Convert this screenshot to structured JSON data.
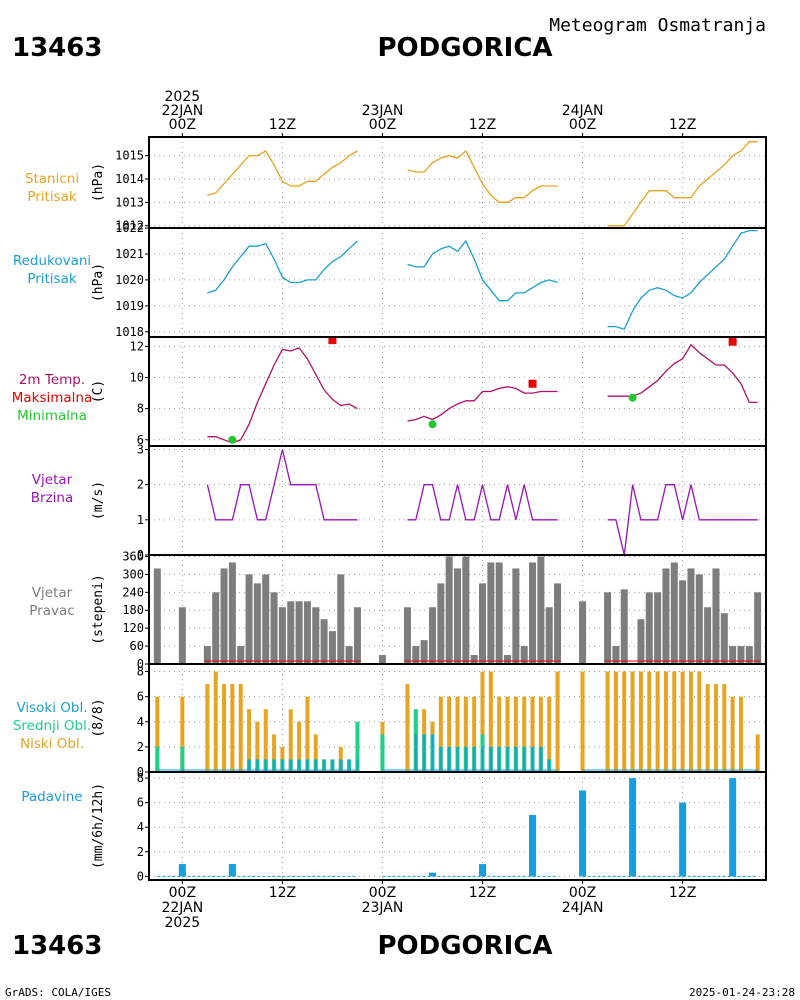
{
  "header": {
    "station_id": "13463",
    "station_name": "PODGORICA",
    "product": "Meteogram Osmatranja",
    "credit": "GrADS: COLA/IGES",
    "timestamp": "2025-01-24-23:28"
  },
  "colors": {
    "orange": "#e6a422",
    "cyan": "#1a9fd0",
    "magenta": "#b0106b",
    "red": "#e60000",
    "green": "#1fc82b",
    "purple": "#9a13b8",
    "gray": "#7d7d7d",
    "teal": "#1fcf8a",
    "blue": "#169fe0"
  },
  "time_axis": {
    "x_range_hours": [
      -4,
      70
    ],
    "top_labels": [
      {
        "hour": 0,
        "lines": [
          "2025",
          "22JAN",
          "00Z"
        ]
      },
      {
        "hour": 12,
        "lines": [
          "12Z"
        ]
      },
      {
        "hour": 24,
        "lines": [
          "23JAN",
          "00Z"
        ]
      },
      {
        "hour": 36,
        "lines": [
          "12Z"
        ]
      },
      {
        "hour": 48,
        "lines": [
          "24JAN",
          "00Z"
        ]
      },
      {
        "hour": 60,
        "lines": [
          "12Z"
        ]
      }
    ],
    "bottom_labels": [
      {
        "hour": 0,
        "lines": [
          "00Z",
          "22JAN",
          "2025"
        ]
      },
      {
        "hour": 12,
        "lines": [
          "12Z"
        ]
      },
      {
        "hour": 24,
        "lines": [
          "00Z",
          "23JAN"
        ]
      },
      {
        "hour": 36,
        "lines": [
          "12Z"
        ]
      },
      {
        "hour": 48,
        "lines": [
          "00Z",
          "24JAN"
        ]
      },
      {
        "hour": 60,
        "lines": [
          "12Z"
        ]
      }
    ]
  },
  "chart_data": [
    {
      "id": "station_pressure",
      "type": "line",
      "labels": [
        "Stanicni",
        "Pritisak"
      ],
      "ylabel": "(hPa)",
      "ylim": [
        1011.9,
        1015.8
      ],
      "ticks": [
        1012,
        1013,
        1014,
        1015
      ],
      "color": "orange",
      "segments": [
        {
          "x": [
            3,
            4,
            5,
            6,
            7,
            8,
            9,
            10,
            11,
            12,
            13,
            14,
            15,
            16,
            17,
            18,
            19,
            20,
            21
          ],
          "y": [
            1013.3,
            1013.4,
            1013.8,
            1014.2,
            1014.6,
            1015.0,
            1015.0,
            1015.2,
            1014.6,
            1013.9,
            1013.7,
            1013.7,
            1013.9,
            1013.9,
            1014.2,
            1014.5,
            1014.7,
            1015.0,
            1015.2
          ]
        },
        {
          "x": [
            27,
            28,
            29,
            30,
            31,
            32,
            33,
            34,
            35,
            36,
            37,
            38,
            39,
            40,
            41,
            42,
            43,
            44,
            45
          ],
          "y": [
            1014.4,
            1014.3,
            1014.3,
            1014.7,
            1014.9,
            1015.0,
            1014.9,
            1015.2,
            1014.5,
            1013.8,
            1013.3,
            1013.0,
            1013.0,
            1013.2,
            1013.2,
            1013.5,
            1013.7,
            1013.7,
            1013.7
          ]
        },
        {
          "x": [
            51,
            52,
            53,
            54,
            55,
            56,
            57,
            58,
            59,
            60,
            61,
            62,
            63,
            64,
            65,
            66,
            67,
            68,
            69
          ],
          "y": [
            1012.0,
            1012.0,
            1012.0,
            1012.5,
            1013.0,
            1013.5,
            1013.5,
            1013.5,
            1013.2,
            1013.2,
            1013.2,
            1013.7,
            1014.0,
            1014.3,
            1014.6,
            1015.0,
            1015.2,
            1015.6,
            1015.6
          ]
        }
      ]
    },
    {
      "id": "reduced_pressure",
      "type": "line",
      "labels": [
        "Redukovani",
        "Pritisak"
      ],
      "ylabel": "(hPa)",
      "ylim": [
        1017.8,
        1022.0
      ],
      "ticks": [
        1018,
        1019,
        1020,
        1021,
        1022
      ],
      "color": "cyan",
      "segments": [
        {
          "x": [
            3,
            4,
            5,
            6,
            7,
            8,
            9,
            10,
            11,
            12,
            13,
            14,
            15,
            16,
            17,
            18,
            19,
            20,
            21
          ],
          "y": [
            1019.5,
            1019.6,
            1020.0,
            1020.5,
            1020.9,
            1021.3,
            1021.3,
            1021.4,
            1020.8,
            1020.1,
            1019.9,
            1019.9,
            1020.0,
            1020.0,
            1020.4,
            1020.7,
            1020.9,
            1021.2,
            1021.5
          ]
        },
        {
          "x": [
            27,
            28,
            29,
            30,
            31,
            32,
            33,
            34,
            35,
            36,
            37,
            38,
            39,
            40,
            41,
            42,
            43,
            44,
            45
          ],
          "y": [
            1020.6,
            1020.5,
            1020.5,
            1021.0,
            1021.2,
            1021.3,
            1021.1,
            1021.5,
            1020.8,
            1020.0,
            1019.6,
            1019.2,
            1019.2,
            1019.5,
            1019.5,
            1019.7,
            1019.9,
            1020.0,
            1019.9
          ]
        },
        {
          "x": [
            51,
            52,
            53,
            54,
            55,
            56,
            57,
            58,
            59,
            60,
            61,
            62,
            63,
            64,
            65,
            66,
            67,
            68,
            69
          ],
          "y": [
            1018.2,
            1018.2,
            1018.1,
            1018.8,
            1019.3,
            1019.6,
            1019.7,
            1019.6,
            1019.4,
            1019.3,
            1019.5,
            1019.9,
            1020.2,
            1020.5,
            1020.8,
            1021.3,
            1021.8,
            1021.9,
            1021.9
          ]
        }
      ]
    },
    {
      "id": "temperature",
      "type": "line",
      "labels": [
        "2m Temp.",
        "Maksimalna",
        "Minimalna"
      ],
      "label_colors": [
        "magenta",
        "red",
        "green"
      ],
      "ylabel": "(C)",
      "ylim": [
        5.6,
        12.6
      ],
      "ticks": [
        6,
        8,
        10,
        12
      ],
      "color": "magenta",
      "segments": [
        {
          "x": [
            3,
            4,
            5,
            6,
            7,
            8,
            9,
            10,
            11,
            12,
            13,
            14,
            15,
            16,
            17,
            18,
            19,
            20,
            21
          ],
          "y": [
            6.2,
            6.2,
            6.0,
            5.8,
            6.0,
            7.0,
            8.4,
            9.6,
            10.8,
            11.8,
            11.7,
            11.9,
            11.2,
            10.2,
            9.2,
            8.6,
            8.2,
            8.3,
            8.0
          ]
        },
        {
          "x": [
            27,
            28,
            29,
            30,
            31,
            32,
            33,
            34,
            35,
            36,
            37,
            38,
            39,
            40,
            41,
            42,
            43,
            44,
            45
          ],
          "y": [
            7.2,
            7.3,
            7.5,
            7.3,
            7.6,
            8.0,
            8.3,
            8.5,
            8.5,
            9.1,
            9.1,
            9.3,
            9.4,
            9.3,
            9.0,
            9.0,
            9.1,
            9.1,
            9.1
          ]
        },
        {
          "x": [
            51,
            52,
            53,
            54,
            55,
            56,
            57,
            58,
            59,
            60,
            61,
            62,
            63,
            64,
            65,
            66,
            67,
            68,
            69
          ],
          "y": [
            8.8,
            8.8,
            8.8,
            8.8,
            9.0,
            9.4,
            9.8,
            10.4,
            10.9,
            11.2,
            12.1,
            11.6,
            11.2,
            10.8,
            10.8,
            10.3,
            9.6,
            8.4,
            8.4
          ]
        }
      ],
      "max_markers": [
        {
          "x": 18,
          "y": 12.4
        },
        {
          "x": 42,
          "y": 9.6
        },
        {
          "x": 66,
          "y": 12.3
        }
      ],
      "min_markers": [
        {
          "x": 6,
          "y": 6.0
        },
        {
          "x": 30,
          "y": 7.0
        },
        {
          "x": 54,
          "y": 8.7
        }
      ]
    },
    {
      "id": "wind_speed",
      "type": "line",
      "labels": [
        "Vjetar",
        "Brzina"
      ],
      "ylabel": "(m/s)",
      "ylim": [
        0,
        3.1
      ],
      "ticks": [
        0,
        1,
        2,
        3
      ],
      "color": "purple",
      "segments": [
        {
          "x": [
            3,
            4,
            5,
            6,
            7,
            8,
            9,
            10,
            11,
            12,
            13,
            14,
            15,
            16,
            17,
            18,
            19,
            20,
            21
          ],
          "y": [
            2,
            1,
            1,
            1,
            2,
            2,
            1,
            1,
            2,
            3,
            2,
            2,
            2,
            2,
            1,
            1,
            1,
            1,
            1
          ]
        },
        {
          "x": [
            27,
            28,
            29,
            30,
            31,
            32,
            33,
            34,
            35,
            36,
            37,
            38,
            39,
            40,
            41,
            42,
            43,
            44,
            45
          ],
          "y": [
            1,
            1,
            2,
            2,
            1,
            1,
            2,
            1,
            1,
            2,
            1,
            1,
            2,
            1,
            2,
            1,
            1,
            1,
            1
          ]
        },
        {
          "x": [
            51,
            52,
            53,
            54,
            55,
            56,
            57,
            58,
            59,
            60,
            61,
            62,
            63,
            64,
            65,
            66,
            67,
            68,
            69
          ],
          "y": [
            1,
            1,
            0,
            2,
            1,
            1,
            1,
            2,
            2,
            1,
            2,
            1,
            1,
            1,
            1,
            1,
            1,
            1,
            1
          ]
        }
      ]
    },
    {
      "id": "wind_direction",
      "type": "bar",
      "labels": [
        "Vjetar",
        "Pravac"
      ],
      "ylabel": "(stepeni)",
      "ylim": [
        0,
        365
      ],
      "ticks": [
        0,
        60,
        120,
        180,
        240,
        300,
        360
      ],
      "color": "gray",
      "baseline_color": "red",
      "x": [
        -3,
        0,
        3,
        4,
        5,
        6,
        7,
        8,
        9,
        10,
        11,
        12,
        13,
        14,
        15,
        16,
        17,
        18,
        19,
        20,
        21,
        24,
        27,
        28,
        29,
        30,
        31,
        32,
        33,
        34,
        35,
        36,
        37,
        38,
        39,
        40,
        41,
        42,
        43,
        44,
        45,
        48,
        51,
        52,
        53,
        54,
        55,
        56,
        57,
        58,
        59,
        60,
        61,
        62,
        63,
        64,
        65,
        66,
        67,
        68,
        69
      ],
      "values": [
        320,
        190,
        60,
        240,
        320,
        340,
        60,
        300,
        270,
        300,
        240,
        190,
        210,
        210,
        210,
        190,
        150,
        110,
        300,
        60,
        190,
        30,
        190,
        60,
        80,
        190,
        270,
        360,
        320,
        360,
        30,
        270,
        340,
        340,
        30,
        320,
        60,
        340,
        360,
        190,
        270,
        210,
        240,
        60,
        250,
        0,
        150,
        240,
        240,
        320,
        340,
        280,
        320,
        300,
        190,
        320,
        170,
        60,
        60,
        60,
        240
      ]
    },
    {
      "id": "clouds",
      "type": "bar",
      "labels": [
        "Visoki Obl.",
        "Srednji Obl.",
        "Niski Obl."
      ],
      "label_colors": [
        "cyan",
        "teal",
        "orange"
      ],
      "ylabel": "(8/8)",
      "ylim": [
        0,
        8.6
      ],
      "ticks": [
        0,
        2,
        4,
        6,
        8
      ],
      "series": [
        {
          "name": "Niski Obl.",
          "color": "orange",
          "x": [
            -3,
            0,
            3,
            4,
            5,
            6,
            7,
            8,
            9,
            10,
            11,
            12,
            13,
            14,
            15,
            16,
            17,
            18,
            19,
            20,
            21,
            24,
            27,
            28,
            29,
            30,
            31,
            32,
            33,
            34,
            35,
            36,
            37,
            38,
            39,
            40,
            41,
            42,
            43,
            44,
            45,
            48,
            51,
            52,
            53,
            54,
            55,
            56,
            57,
            58,
            59,
            60,
            61,
            62,
            63,
            64,
            65,
            66,
            67,
            68,
            69
          ],
          "values": [
            6,
            6,
            7,
            8,
            7,
            7,
            7,
            5,
            4,
            5,
            3,
            2,
            5,
            4,
            6,
            3,
            1,
            1,
            2,
            1,
            1,
            4,
            7,
            4,
            5,
            4,
            6,
            6,
            6,
            6,
            6,
            8,
            8,
            6,
            6,
            6,
            6,
            6,
            6,
            6,
            8,
            8,
            8,
            8,
            8,
            8,
            8,
            8,
            8,
            8,
            8,
            8,
            8,
            8,
            7,
            7,
            7,
            6,
            6,
            0,
            3
          ]
        },
        {
          "name": "Srednji Obl.",
          "color": "teal",
          "x": [
            -3,
            0,
            8,
            9,
            10,
            11,
            12,
            13,
            14,
            15,
            16,
            17,
            18,
            19,
            20,
            21,
            24,
            28,
            29,
            30,
            31,
            32,
            33,
            34,
            35,
            36,
            37,
            38,
            39,
            40,
            41,
            42,
            43,
            44
          ],
          "values": [
            2,
            2,
            1,
            1,
            1,
            1,
            1,
            1,
            1,
            1,
            1,
            1,
            1,
            1,
            1,
            4,
            3,
            5,
            3,
            3,
            2,
            2,
            2,
            2,
            2,
            3,
            2,
            2,
            2,
            2,
            2,
            2,
            2,
            1
          ]
        },
        {
          "name": "Visoki Obl.",
          "color": "cyan",
          "x": [
            8,
            9,
            10,
            11,
            12,
            13,
            14,
            15,
            16,
            17,
            18,
            19,
            20,
            21,
            28,
            29,
            30,
            31,
            32,
            33,
            34,
            35,
            36,
            37,
            38,
            39,
            40,
            41,
            42,
            43,
            44
          ],
          "values": [
            1,
            1,
            1,
            1,
            1,
            1,
            1,
            1,
            1,
            1,
            1,
            1,
            1,
            1,
            3,
            3,
            3,
            2,
            2,
            2,
            2,
            2,
            2,
            2,
            2,
            2,
            2,
            2,
            2,
            2,
            1
          ]
        }
      ]
    },
    {
      "id": "precipitation",
      "type": "bar",
      "labels": [
        "Padavine"
      ],
      "label_colors": [
        "blue"
      ],
      "ylabel": "(mm/6h/12h)",
      "ylim": [
        -0.3,
        8.5
      ],
      "ticks": [
        0,
        2,
        4,
        6,
        8
      ],
      "color": "blue",
      "x": [
        0,
        6,
        30,
        36,
        42,
        48,
        54,
        60,
        66
      ],
      "values": [
        1.0,
        1.0,
        0.3,
        1.0,
        5.0,
        7.0,
        8.0,
        6.0,
        8.0
      ]
    }
  ]
}
